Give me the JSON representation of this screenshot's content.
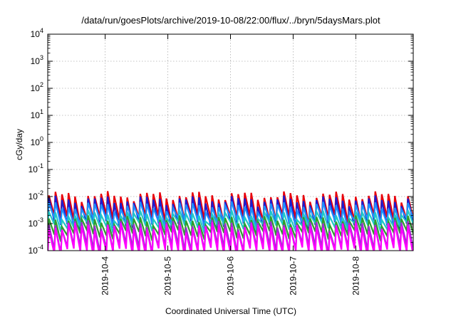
{
  "chart_data": {
    "type": "line",
    "title": "/data/run/goesPlots/archive/2019-10-08/22:00/flux/../bryn/5daysMars.plot",
    "xlabel": "Coordinated Universal Time (UTC)",
    "ylabel": "cGy/day",
    "x_range": [
      "2019-10-03T02:00",
      "2019-10-08T22:00"
    ],
    "x_ticks": [
      "2019-10-4",
      "2019-10-5",
      "2019-10-6",
      "2019-10-7",
      "2019-10-8"
    ],
    "y_scale": "log",
    "ylim": [
      0.0001,
      10000
    ],
    "y_ticks": [
      {
        "base": "10",
        "exp": "-4"
      },
      {
        "base": "10",
        "exp": "-3"
      },
      {
        "base": "10",
        "exp": "-2"
      },
      {
        "base": "10",
        "exp": "-1"
      },
      {
        "base": "10",
        "exp": "0"
      },
      {
        "base": "10",
        "exp": "1"
      },
      {
        "base": "10",
        "exp": "2"
      },
      {
        "base": "10",
        "exp": "3"
      },
      {
        "base": "10",
        "exp": "4"
      }
    ],
    "grid": true,
    "sawtooth_cycles": 56,
    "series": [
      {
        "color": "#e8000b",
        "peak": 0.011,
        "trough": 0.0015
      },
      {
        "color": "#1c1cd0",
        "peak": 0.0075,
        "trough": 0.0009
      },
      {
        "color": "#1e90ff",
        "peak": 0.0045,
        "trough": 0.0012
      },
      {
        "color": "#20c8c8",
        "peak": 0.0022,
        "trough": 0.0008
      },
      {
        "color": "#2e9e2e",
        "peak": 0.0014,
        "trough": 0.0004
      },
      {
        "color": "#9b30d0",
        "peak": 0.001,
        "trough": 0.00013
      },
      {
        "color": "#ff00ff",
        "peak": 0.0008,
        "trough": 9e-05
      }
    ]
  }
}
